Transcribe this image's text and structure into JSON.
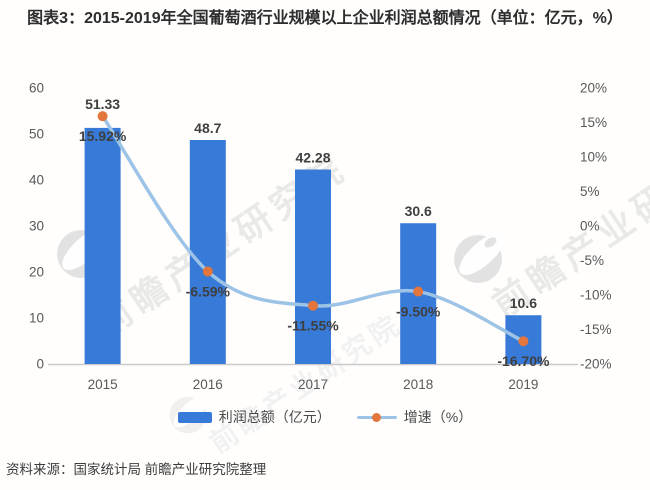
{
  "title": {
    "text": "图表3：2015-2019年全国葡萄酒行业规模以上企业利润总额情况（单位：亿元，%）"
  },
  "legend": {
    "bar_label": "利润总额（亿元）",
    "line_label": "增速（%）"
  },
  "source": {
    "text": "资料来源：国家统计局 前瞻产业研究院整理"
  },
  "watermark": {
    "text": "前瞻产业研究院"
  },
  "colors": {
    "bar": "#377AD7",
    "line": "#9DC3E6",
    "marker": "#E2763C",
    "axis_text": "#595959",
    "data_label": "#3F3F3F",
    "axis_line": "#C9C9C9",
    "title": "#2D2D2D",
    "watermark": "#C8C8C8"
  },
  "chart_data": {
    "type": "bar+line",
    "title": "图表3：2015-2019年全国葡萄酒行业规模以上企业利润总额情况（单位：亿元，%）",
    "categories": [
      "2015",
      "2016",
      "2017",
      "2018",
      "2019"
    ],
    "series": [
      {
        "name": "利润总额（亿元）",
        "type": "bar",
        "axis": "left",
        "values": [
          51.33,
          48.7,
          42.28,
          30.6,
          10.6
        ],
        "labels": [
          "51.33",
          "48.7",
          "42.28",
          "30.6",
          "10.6"
        ]
      },
      {
        "name": "增速（%）",
        "type": "line",
        "axis": "right",
        "values": [
          15.92,
          -6.59,
          -11.55,
          -9.5,
          -16.7
        ],
        "labels": [
          "15.92%",
          "-6.59%",
          "-11.55%",
          "-9.50%",
          "-16.70%"
        ]
      }
    ],
    "left_axis": {
      "min": 0,
      "max": 60,
      "ticks": [
        "0",
        "10",
        "20",
        "30",
        "40",
        "50",
        "60"
      ]
    },
    "right_axis": {
      "min": -20,
      "max": 20,
      "ticks": [
        "-20%",
        "-15%",
        "-10%",
        "-5%",
        "0%",
        "5%",
        "10%",
        "15%",
        "20%"
      ]
    },
    "grid": false,
    "legend_position": "bottom"
  }
}
